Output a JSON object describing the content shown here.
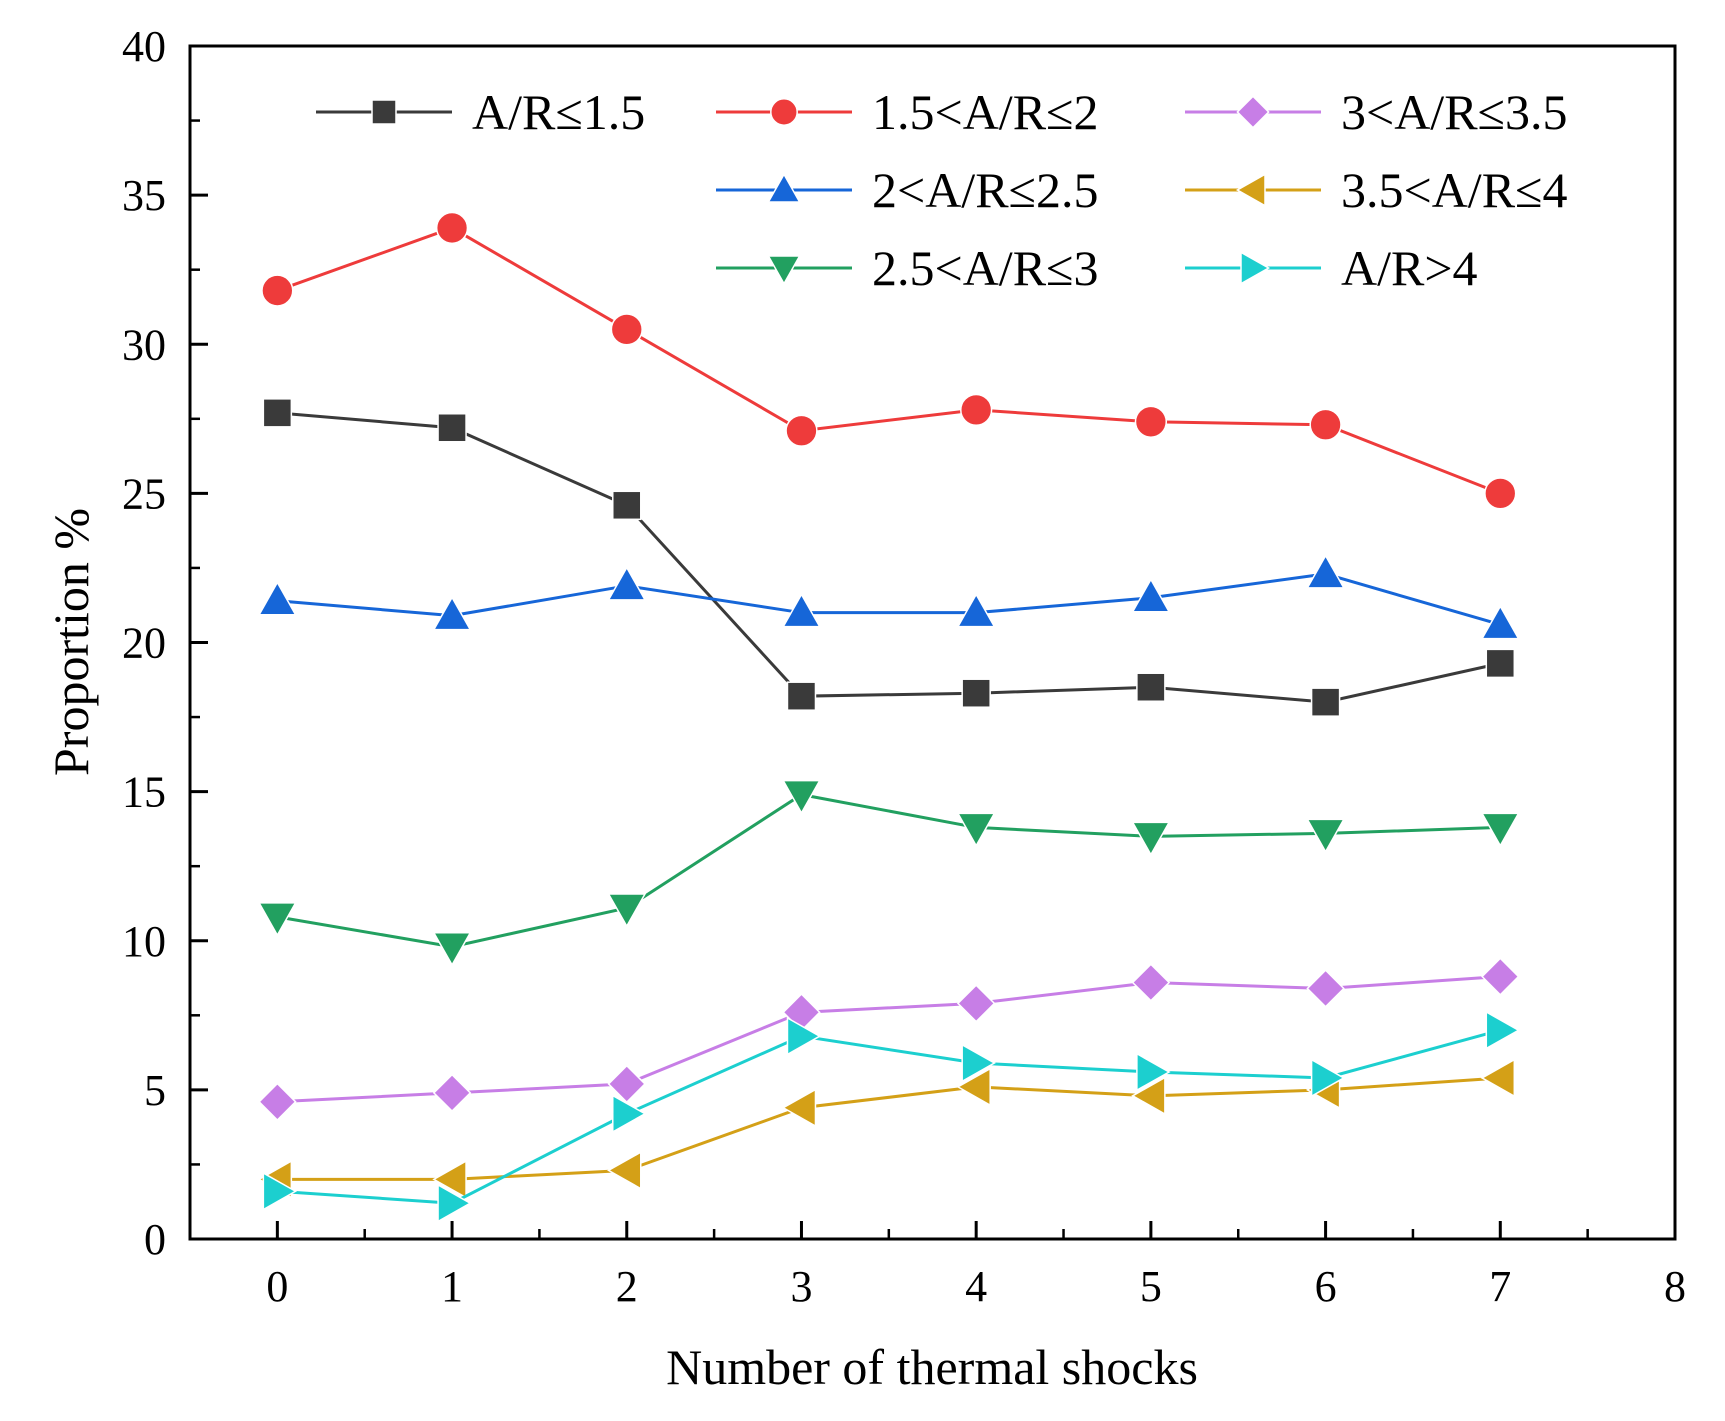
{
  "chart_data": {
    "type": "line",
    "title": "",
    "xlabel": "Number of thermal shocks",
    "ylabel": "Proportion %",
    "xlim": [
      -0.5,
      8
    ],
    "ylim": [
      0,
      40
    ],
    "xticks": [
      0,
      1,
      2,
      3,
      4,
      5,
      6,
      7,
      8
    ],
    "yticks": [
      0,
      5,
      10,
      15,
      20,
      25,
      30,
      35,
      40
    ],
    "xtick_labels": [
      "0",
      "1",
      "2",
      "3",
      "4",
      "5",
      "6",
      "7",
      "8"
    ],
    "ytick_labels": [
      "0",
      "5",
      "10",
      "15",
      "20",
      "25",
      "30",
      "35",
      "40"
    ],
    "grid": false,
    "legend_position": "top-right",
    "x": [
      0,
      1,
      2,
      3,
      4,
      5,
      6,
      7
    ],
    "series": [
      {
        "name": "A/R≤1.5",
        "color": "#3a3a3a",
        "marker": "square",
        "values": [
          27.7,
          27.2,
          24.6,
          18.2,
          18.3,
          18.5,
          18.0,
          19.3
        ]
      },
      {
        "name": "1.5<A/R≤2",
        "color": "#ee3b3b",
        "marker": "circle",
        "values": [
          31.8,
          33.9,
          30.5,
          27.1,
          27.8,
          27.4,
          27.3,
          25.0
        ]
      },
      {
        "name": "3<A/R≤3.5",
        "color": "#c77ee6",
        "marker": "diamond",
        "values": [
          4.6,
          4.9,
          5.2,
          7.6,
          7.9,
          8.6,
          8.4,
          8.8
        ]
      },
      {
        "name": "2<A/R≤2.5",
        "color": "#1666d8",
        "marker": "triangle-up",
        "values": [
          21.4,
          20.9,
          21.9,
          21.0,
          21.0,
          21.5,
          22.3,
          20.6
        ]
      },
      {
        "name": "3.5<A/R≤4",
        "color": "#d4a017",
        "marker": "triangle-left",
        "values": [
          2.0,
          2.0,
          2.3,
          4.4,
          5.1,
          4.8,
          5.0,
          5.4
        ]
      },
      {
        "name": "2.5<A/R≤3",
        "color": "#22a060",
        "marker": "triangle-down",
        "values": [
          10.8,
          9.8,
          11.1,
          14.9,
          13.8,
          13.5,
          13.6,
          13.8
        ]
      },
      {
        "name": "A/R>4",
        "color": "#1ccfcf",
        "marker": "triangle-right",
        "values": [
          1.6,
          1.2,
          4.2,
          6.8,
          5.9,
          5.6,
          5.4,
          7.0
        ]
      }
    ]
  }
}
